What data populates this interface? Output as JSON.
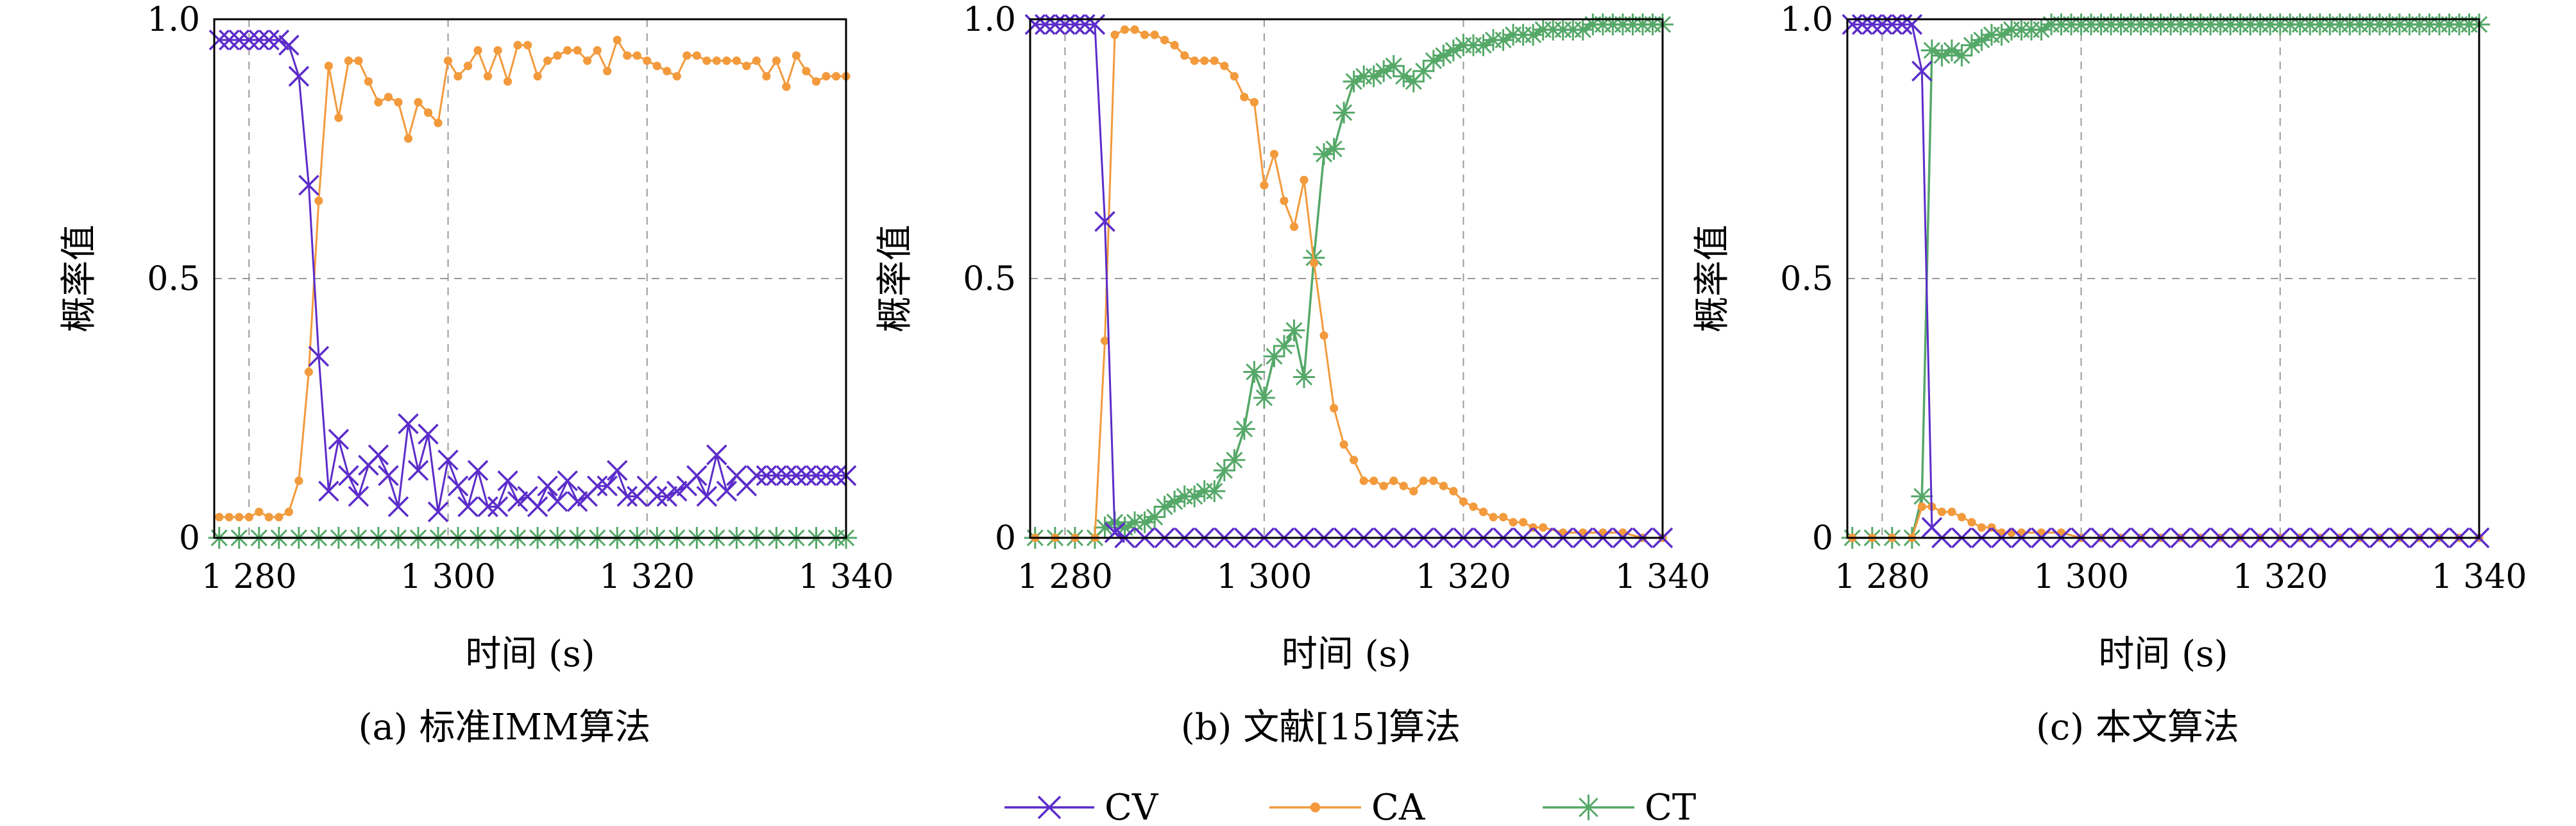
{
  "colors": {
    "CV": "#5b2cc9",
    "CA": "#f29a3c",
    "CT": "#55a868",
    "grid": "#9a9a9a"
  },
  "legend": {
    "placement": "bottom-center",
    "items": [
      {
        "series": "CV",
        "marker": "x-marker-icon"
      },
      {
        "series": "CA",
        "marker": "dot-marker-icon"
      },
      {
        "series": "CT",
        "marker": "asterisk-marker-icon"
      }
    ]
  },
  "chart_data": [
    {
      "type": "line",
      "caption": "(a) 标准IMM算法",
      "xlabel": "时间 (s)",
      "ylabel": "概率值",
      "xlim": [
        1276.5,
        1340
      ],
      "ylim": [
        0,
        1
      ],
      "xticks": [
        1280,
        1300,
        1320,
        1340
      ],
      "xtick_labels": [
        "1 280",
        "1 300",
        "1 320",
        "1 340"
      ],
      "yticks": [
        0,
        0.5,
        1
      ],
      "ytick_labels": [
        "0",
        "0.5",
        "1.0"
      ],
      "grid": true,
      "series": [
        {
          "name": "CV",
          "x": [
            1277,
            1278,
            1279,
            1280,
            1281,
            1282,
            1283,
            1284,
            1285,
            1286,
            1287,
            1288,
            1289,
            1290,
            1291,
            1292,
            1293,
            1294,
            1295,
            1296,
            1297,
            1298,
            1299,
            1300,
            1301,
            1302,
            1303,
            1304,
            1305,
            1306,
            1307,
            1308,
            1309,
            1310,
            1311,
            1312,
            1313,
            1314,
            1315,
            1316,
            1317,
            1318,
            1319,
            1320,
            1321,
            1322,
            1323,
            1324,
            1325,
            1326,
            1327,
            1328,
            1329,
            1330,
            1331,
            1332,
            1333,
            1334,
            1335,
            1336,
            1337,
            1338,
            1339,
            1340
          ],
          "y": [
            0.96,
            0.96,
            0.96,
            0.96,
            0.96,
            0.96,
            0.96,
            0.95,
            0.89,
            0.68,
            0.35,
            0.09,
            0.19,
            0.12,
            0.08,
            0.14,
            0.16,
            0.12,
            0.06,
            0.22,
            0.13,
            0.2,
            0.05,
            0.15,
            0.1,
            0.06,
            0.13,
            0.06,
            0.06,
            0.11,
            0.07,
            0.08,
            0.06,
            0.1,
            0.07,
            0.11,
            0.07,
            0.08,
            0.1,
            0.1,
            0.13,
            0.08,
            0.08,
            0.1,
            0.08,
            0.08,
            0.09,
            0.1,
            0.12,
            0.08,
            0.16,
            0.09,
            0.12,
            0.1,
            0.12,
            0.12,
            0.12,
            0.12,
            0.12,
            0.12,
            0.12,
            0.12,
            0.12,
            0.12
          ]
        },
        {
          "name": "CA",
          "x": [
            1277,
            1278,
            1279,
            1280,
            1281,
            1282,
            1283,
            1284,
            1285,
            1286,
            1287,
            1288,
            1289,
            1290,
            1291,
            1292,
            1293,
            1294,
            1295,
            1296,
            1297,
            1298,
            1299,
            1300,
            1301,
            1302,
            1303,
            1304,
            1305,
            1306,
            1307,
            1308,
            1309,
            1310,
            1311,
            1312,
            1313,
            1314,
            1315,
            1316,
            1317,
            1318,
            1319,
            1320,
            1321,
            1322,
            1323,
            1324,
            1325,
            1326,
            1327,
            1328,
            1329,
            1330,
            1331,
            1332,
            1333,
            1334,
            1335,
            1336,
            1337,
            1338,
            1339,
            1340
          ],
          "y": [
            0.04,
            0.04,
            0.04,
            0.04,
            0.05,
            0.04,
            0.04,
            0.05,
            0.11,
            0.32,
            0.65,
            0.91,
            0.81,
            0.92,
            0.92,
            0.88,
            0.84,
            0.85,
            0.84,
            0.77,
            0.84,
            0.82,
            0.8,
            0.92,
            0.89,
            0.91,
            0.94,
            0.89,
            0.94,
            0.88,
            0.95,
            0.95,
            0.89,
            0.92,
            0.93,
            0.94,
            0.94,
            0.92,
            0.94,
            0.9,
            0.96,
            0.93,
            0.93,
            0.92,
            0.91,
            0.9,
            0.89,
            0.93,
            0.93,
            0.92,
            0.92,
            0.92,
            0.92,
            0.91,
            0.92,
            0.89,
            0.92,
            0.87,
            0.93,
            0.9,
            0.88,
            0.89,
            0.89,
            0.89
          ]
        },
        {
          "name": "CT",
          "x": [
            1277,
            1279,
            1281,
            1283,
            1285,
            1287,
            1289,
            1291,
            1293,
            1295,
            1297,
            1299,
            1301,
            1303,
            1305,
            1307,
            1309,
            1311,
            1313,
            1315,
            1317,
            1319,
            1321,
            1323,
            1325,
            1327,
            1329,
            1331,
            1333,
            1335,
            1337,
            1339,
            1340
          ],
          "y": [
            0,
            0,
            0,
            0,
            0,
            0,
            0,
            0,
            0,
            0,
            0,
            0,
            0,
            0,
            0,
            0,
            0,
            0,
            0,
            0,
            0,
            0,
            0,
            0,
            0,
            0,
            0,
            0,
            0,
            0,
            0,
            0,
            0
          ]
        }
      ]
    },
    {
      "type": "line",
      "caption": "(b) 文献[15]算法",
      "xlabel": "时间 (s)",
      "ylabel": "概率值",
      "xlim": [
        1276.5,
        1340
      ],
      "ylim": [
        0,
        1
      ],
      "xticks": [
        1280,
        1300,
        1320,
        1340
      ],
      "xtick_labels": [
        "1 280",
        "1 300",
        "1 320",
        "1 340"
      ],
      "yticks": [
        0,
        0.5,
        1
      ],
      "ytick_labels": [
        "0",
        "0.5",
        "1.0"
      ],
      "grid": true,
      "series": [
        {
          "name": "CV",
          "x": [
            1277,
            1278,
            1279,
            1280,
            1281,
            1282,
            1283,
            1284,
            1285,
            1286,
            1288,
            1290,
            1292,
            1294,
            1296,
            1298,
            1300,
            1302,
            1304,
            1306,
            1308,
            1310,
            1312,
            1314,
            1316,
            1318,
            1320,
            1322,
            1324,
            1326,
            1328,
            1330,
            1332,
            1334,
            1336,
            1338,
            1340
          ],
          "y": [
            0.99,
            0.99,
            0.99,
            0.99,
            0.99,
            0.99,
            0.99,
            0.61,
            0.01,
            0,
            0,
            0,
            0,
            0,
            0,
            0,
            0,
            0,
            0,
            0,
            0,
            0,
            0,
            0,
            0,
            0,
            0,
            0,
            0,
            0,
            0,
            0,
            0,
            0,
            0,
            0,
            0
          ]
        },
        {
          "name": "CA",
          "x": [
            1277,
            1279,
            1281,
            1283,
            1284,
            1285,
            1286,
            1287,
            1288,
            1289,
            1290,
            1291,
            1292,
            1293,
            1294,
            1295,
            1296,
            1297,
            1298,
            1299,
            1300,
            1301,
            1302,
            1303,
            1304,
            1305,
            1306,
            1307,
            1308,
            1309,
            1310,
            1311,
            1312,
            1313,
            1314,
            1315,
            1316,
            1317,
            1318,
            1319,
            1320,
            1321,
            1322,
            1323,
            1324,
            1325,
            1326,
            1327,
            1328,
            1330,
            1332,
            1334,
            1336,
            1338,
            1340
          ],
          "y": [
            0,
            0,
            0,
            0,
            0.38,
            0.97,
            0.98,
            0.98,
            0.97,
            0.97,
            0.96,
            0.95,
            0.93,
            0.92,
            0.92,
            0.92,
            0.91,
            0.89,
            0.85,
            0.84,
            0.68,
            0.74,
            0.65,
            0.6,
            0.69,
            0.53,
            0.39,
            0.25,
            0.18,
            0.15,
            0.11,
            0.11,
            0.1,
            0.11,
            0.1,
            0.09,
            0.11,
            0.11,
            0.1,
            0.09,
            0.07,
            0.06,
            0.05,
            0.04,
            0.04,
            0.03,
            0.03,
            0.02,
            0.02,
            0.01,
            0.01,
            0.01,
            0.01,
            0,
            0
          ]
        },
        {
          "name": "CT",
          "x": [
            1277,
            1279,
            1281,
            1283,
            1284,
            1285,
            1286,
            1287,
            1288,
            1289,
            1290,
            1291,
            1292,
            1293,
            1294,
            1295,
            1296,
            1297,
            1298,
            1299,
            1300,
            1301,
            1302,
            1303,
            1304,
            1305,
            1306,
            1307,
            1308,
            1309,
            1310,
            1311,
            1312,
            1313,
            1314,
            1315,
            1316,
            1317,
            1318,
            1319,
            1320,
            1321,
            1322,
            1323,
            1324,
            1325,
            1326,
            1327,
            1328,
            1329,
            1330,
            1331,
            1332,
            1333,
            1334,
            1335,
            1336,
            1337,
            1338,
            1339,
            1340
          ],
          "y": [
            0,
            0,
            0,
            0,
            0.02,
            0.03,
            0.02,
            0.03,
            0.03,
            0.04,
            0.06,
            0.07,
            0.08,
            0.08,
            0.09,
            0.09,
            0.13,
            0.15,
            0.21,
            0.32,
            0.27,
            0.35,
            0.37,
            0.4,
            0.31,
            0.54,
            0.74,
            0.75,
            0.82,
            0.88,
            0.89,
            0.89,
            0.9,
            0.91,
            0.89,
            0.88,
            0.9,
            0.92,
            0.93,
            0.94,
            0.95,
            0.95,
            0.95,
            0.96,
            0.96,
            0.97,
            0.97,
            0.97,
            0.98,
            0.98,
            0.98,
            0.98,
            0.98,
            0.99,
            0.99,
            0.99,
            0.99,
            0.99,
            0.99,
            0.99,
            0.99
          ]
        }
      ]
    },
    {
      "type": "line",
      "caption": "(c) 本文算法",
      "xlabel": "时间 (s)",
      "ylabel": "概率值",
      "xlim": [
        1276.5,
        1340
      ],
      "ylim": [
        0,
        1
      ],
      "xticks": [
        1280,
        1300,
        1320,
        1340
      ],
      "xtick_labels": [
        "1 280",
        "1 300",
        "1 320",
        "1 340"
      ],
      "yticks": [
        0,
        0.5,
        1
      ],
      "ytick_labels": [
        "0",
        "0.5",
        "1.0"
      ],
      "grid": true,
      "series": [
        {
          "name": "CV",
          "x": [
            1277,
            1278,
            1279,
            1280,
            1281,
            1282,
            1283,
            1284,
            1285,
            1286,
            1288,
            1290,
            1292,
            1294,
            1296,
            1298,
            1300,
            1302,
            1304,
            1306,
            1308,
            1310,
            1312,
            1314,
            1316,
            1318,
            1320,
            1322,
            1324,
            1326,
            1328,
            1330,
            1332,
            1334,
            1336,
            1338,
            1340
          ],
          "y": [
            0.99,
            0.99,
            0.99,
            0.99,
            0.99,
            0.99,
            0.99,
            0.9,
            0.02,
            0,
            0,
            0,
            0,
            0,
            0,
            0,
            0,
            0,
            0,
            0,
            0,
            0,
            0,
            0,
            0,
            0,
            0,
            0,
            0,
            0,
            0,
            0,
            0,
            0,
            0,
            0,
            0
          ]
        },
        {
          "name": "CA",
          "x": [
            1277,
            1279,
            1281,
            1283,
            1284,
            1285,
            1286,
            1287,
            1288,
            1289,
            1290,
            1291,
            1292,
            1293,
            1294,
            1296,
            1298,
            1300,
            1302,
            1304,
            1306,
            1308,
            1310,
            1312,
            1314,
            1316,
            1318,
            1320,
            1322,
            1324,
            1326,
            1328,
            1330,
            1332,
            1334,
            1336,
            1338,
            1340
          ],
          "y": [
            0,
            0,
            0,
            0,
            0.06,
            0.06,
            0.05,
            0.05,
            0.04,
            0.03,
            0.02,
            0.02,
            0.01,
            0.01,
            0.01,
            0.01,
            0.01,
            0,
            0,
            0,
            0,
            0,
            0,
            0,
            0,
            0,
            0,
            0,
            0,
            0,
            0,
            0,
            0,
            0,
            0,
            0,
            0,
            0
          ]
        },
        {
          "name": "CT",
          "x": [
            1277,
            1279,
            1281,
            1283,
            1284,
            1285,
            1286,
            1287,
            1288,
            1289,
            1290,
            1291,
            1292,
            1293,
            1294,
            1295,
            1296,
            1297,
            1298,
            1299,
            1300,
            1301,
            1302,
            1303,
            1304,
            1305,
            1306,
            1307,
            1308,
            1309,
            1310,
            1311,
            1312,
            1313,
            1314,
            1315,
            1316,
            1317,
            1318,
            1319,
            1320,
            1321,
            1322,
            1323,
            1324,
            1325,
            1326,
            1327,
            1328,
            1329,
            1330,
            1331,
            1332,
            1333,
            1334,
            1335,
            1336,
            1337,
            1338,
            1339,
            1340
          ],
          "y": [
            0,
            0,
            0,
            0,
            0.08,
            0.94,
            0.93,
            0.94,
            0.93,
            0.95,
            0.96,
            0.97,
            0.97,
            0.98,
            0.98,
            0.98,
            0.98,
            0.99,
            0.99,
            0.99,
            0.99,
            0.99,
            0.99,
            0.99,
            0.99,
            0.99,
            0.99,
            0.99,
            0.99,
            0.99,
            0.99,
            0.99,
            0.99,
            0.99,
            0.99,
            0.99,
            0.99,
            0.99,
            0.99,
            0.99,
            0.99,
            0.99,
            0.99,
            0.99,
            0.99,
            0.99,
            0.99,
            0.99,
            0.99,
            0.99,
            0.99,
            0.99,
            0.99,
            0.99,
            0.99,
            0.99,
            0.99,
            0.99,
            0.99,
            0.99,
            0.99
          ]
        }
      ]
    }
  ]
}
